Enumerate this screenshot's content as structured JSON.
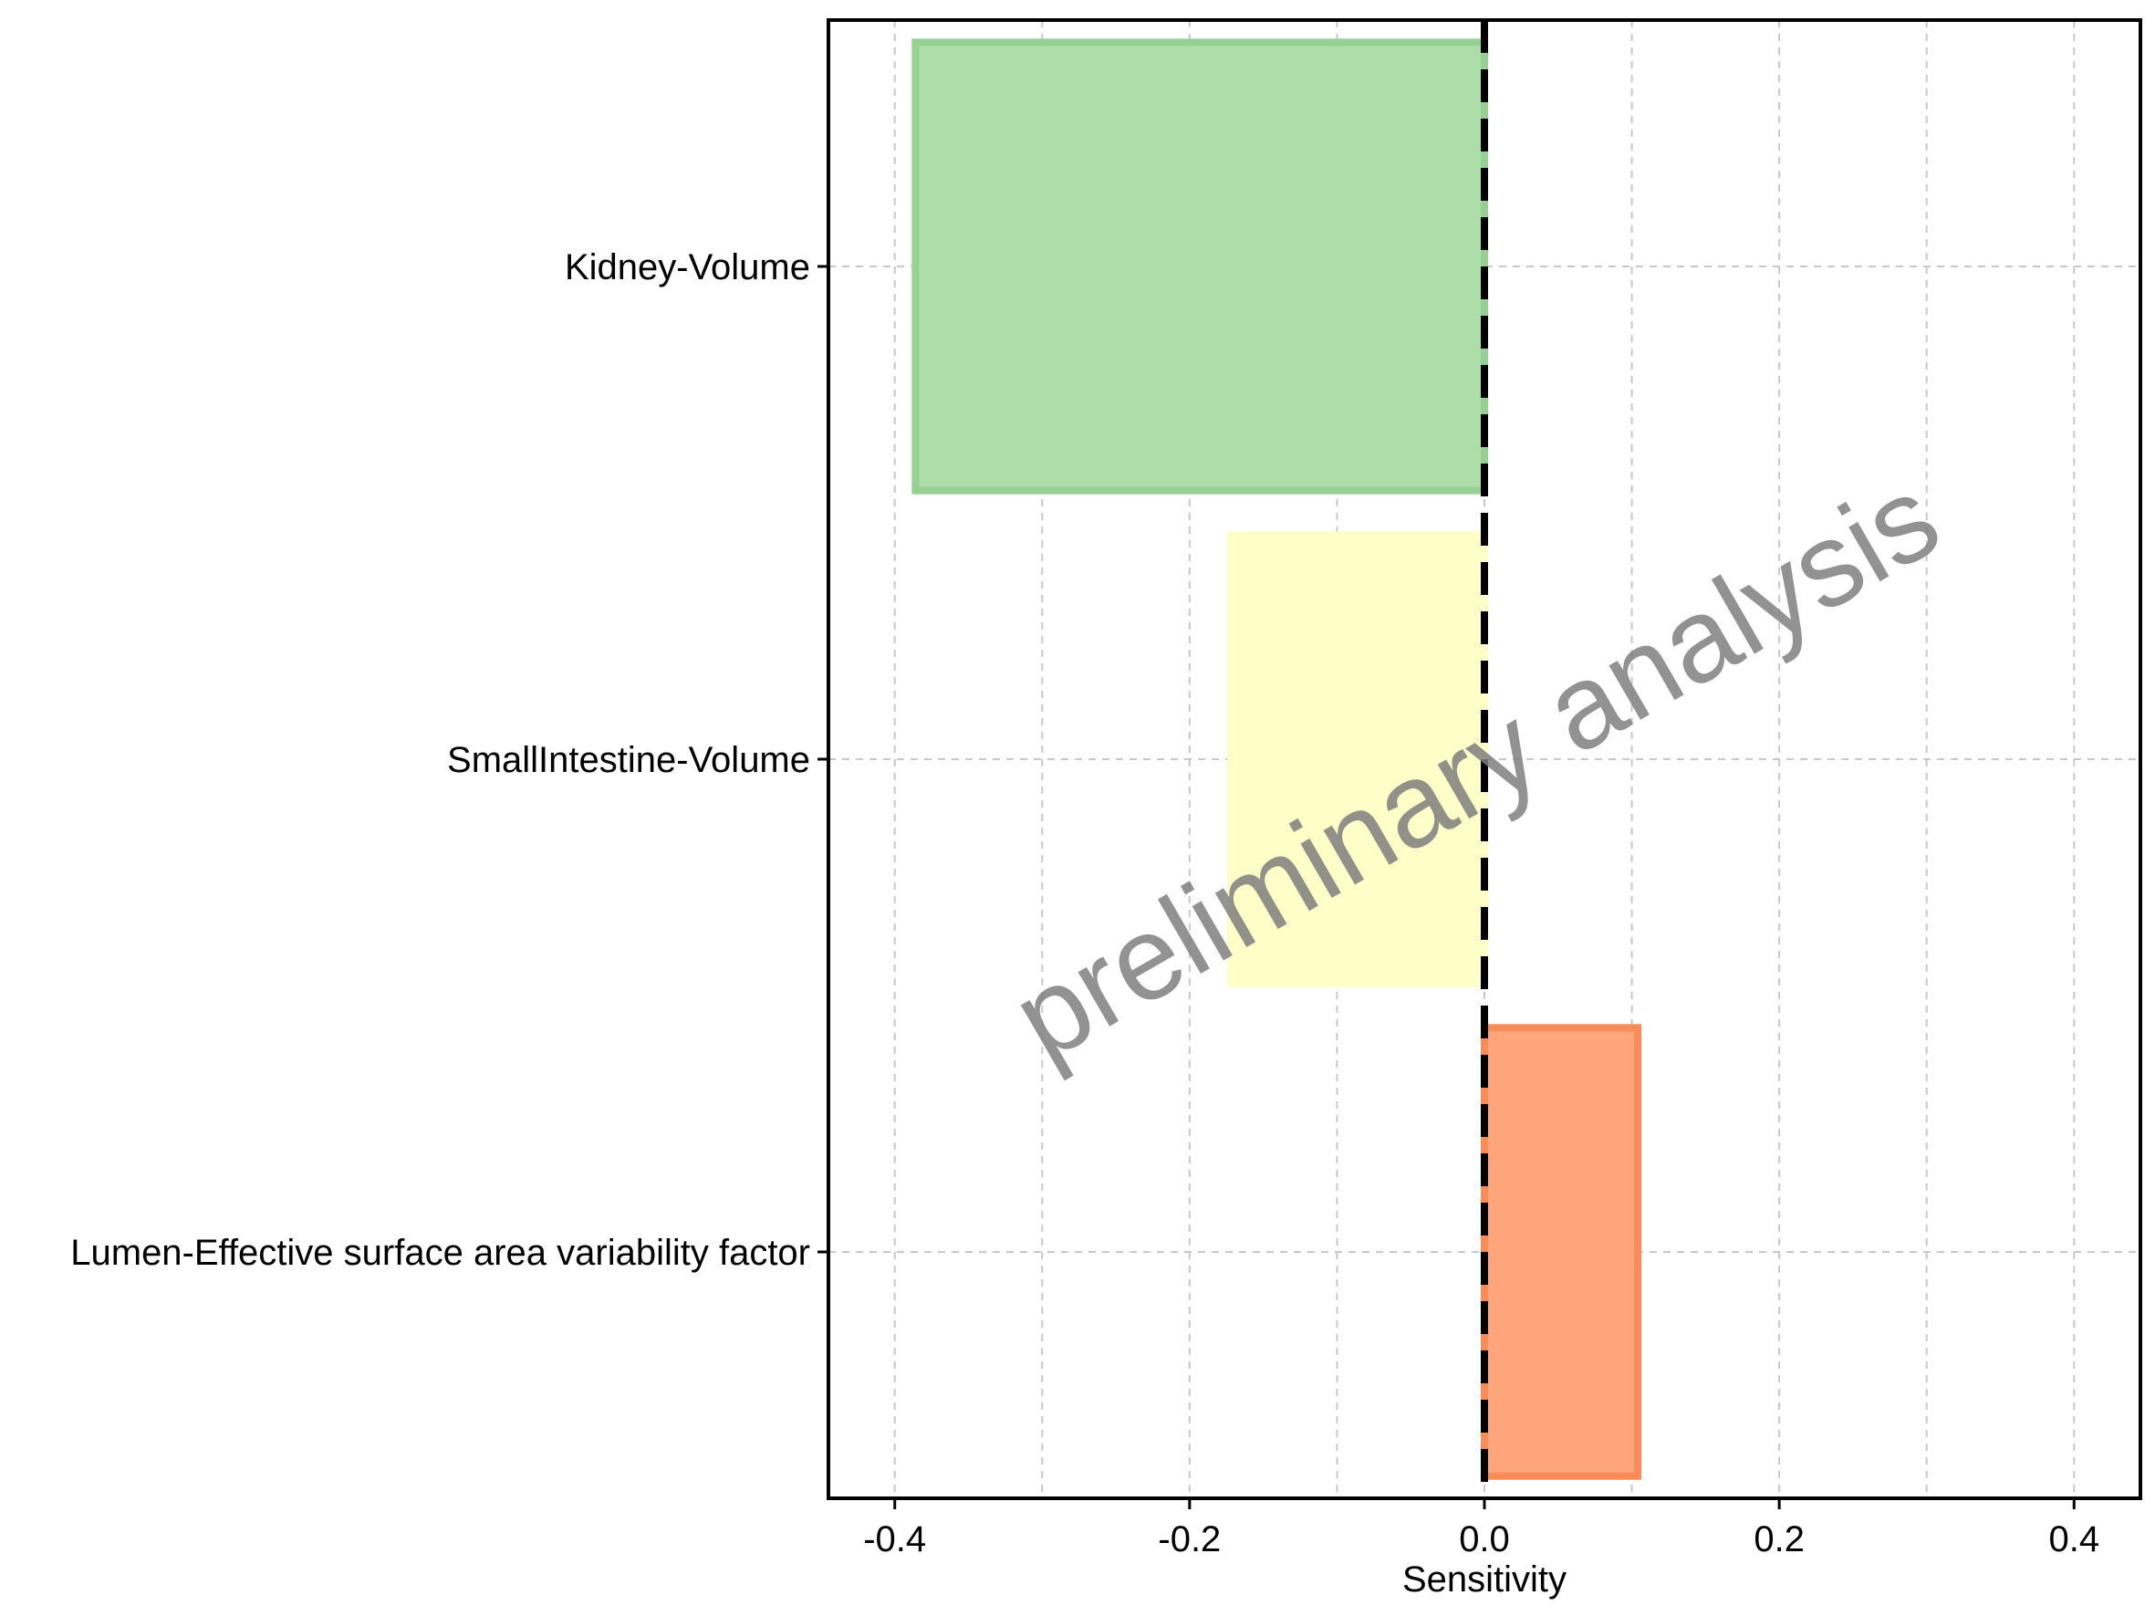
{
  "chart_data": {
    "type": "bar",
    "orientation": "horizontal",
    "title": "",
    "xlabel": "Sensitivity",
    "ylabel": "",
    "xlim": [
      -0.445,
      0.445
    ],
    "x_ticks": [
      -0.4,
      -0.2,
      0.0,
      0.2,
      0.4
    ],
    "x_tick_labels": [
      "-0.4",
      "-0.2",
      "0.0",
      "0.2",
      "0.4"
    ],
    "x_minor_grid": [
      -0.3,
      -0.1,
      0.1,
      0.3
    ],
    "grid": true,
    "reference_line": 0.0,
    "categories": [
      "Kidney-Volume",
      "SmallIntestine-Volume",
      "Lumen-Effective surface area variability factor"
    ],
    "values": [
      -0.386,
      -0.172,
      0.104
    ],
    "bar_fill_colors": [
      "#addeaa",
      "#fffdc8",
      "#fea57c"
    ],
    "bar_edge_colors": [
      "#96d193",
      "#fffdc8",
      "#f98c59"
    ],
    "watermark": "preliminary analysis"
  }
}
